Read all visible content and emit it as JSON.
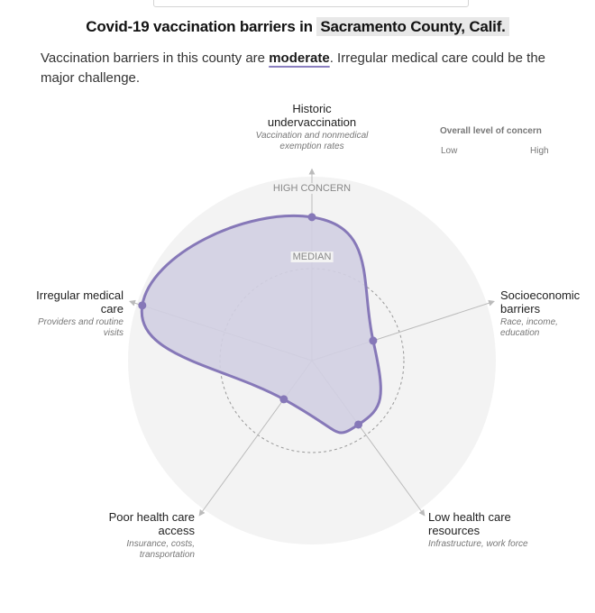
{
  "header": {
    "title_prefix": "Covid-19 vaccination barriers in",
    "place": "Sacramento County, Calif.",
    "summary_before": "Vaccination barriers in this county are",
    "summary_level": "moderate",
    "summary_after": ". Irregular medical care could be the major challenge."
  },
  "legend": {
    "title": "Overall level of concern",
    "low": "Low",
    "high": "High"
  },
  "chart_data": {
    "type": "radar",
    "title": "Covid-19 vaccination barriers in Sacramento County, Calif.",
    "scale": "percentile",
    "range": [
      0,
      100
    ],
    "reference_levels": [
      {
        "label": "MEDIAN",
        "value": 50
      },
      {
        "label": "HIGH CONCERN",
        "value": 100
      }
    ],
    "axes": [
      {
        "name": "Historic undervaccination",
        "subtitle": "Vaccination and nonmedical exemption rates",
        "value": 78
      },
      {
        "name": "Socioeconomic barriers",
        "subtitle": "Race, income, education",
        "value": 35
      },
      {
        "name": "Low health care resources",
        "subtitle": "Infrastructure, work force",
        "value": 43
      },
      {
        "name": "Poor health care access",
        "subtitle": "Insurance, costs, transportation",
        "value": 26
      },
      {
        "name": "Irregular medical care",
        "subtitle": "Providers and routine visits",
        "value": 97
      }
    ],
    "colors": {
      "fill": "#d2cfe2",
      "stroke": "#8678b8",
      "background": "#f3f3f3",
      "axis": "#bbbbbb"
    }
  }
}
